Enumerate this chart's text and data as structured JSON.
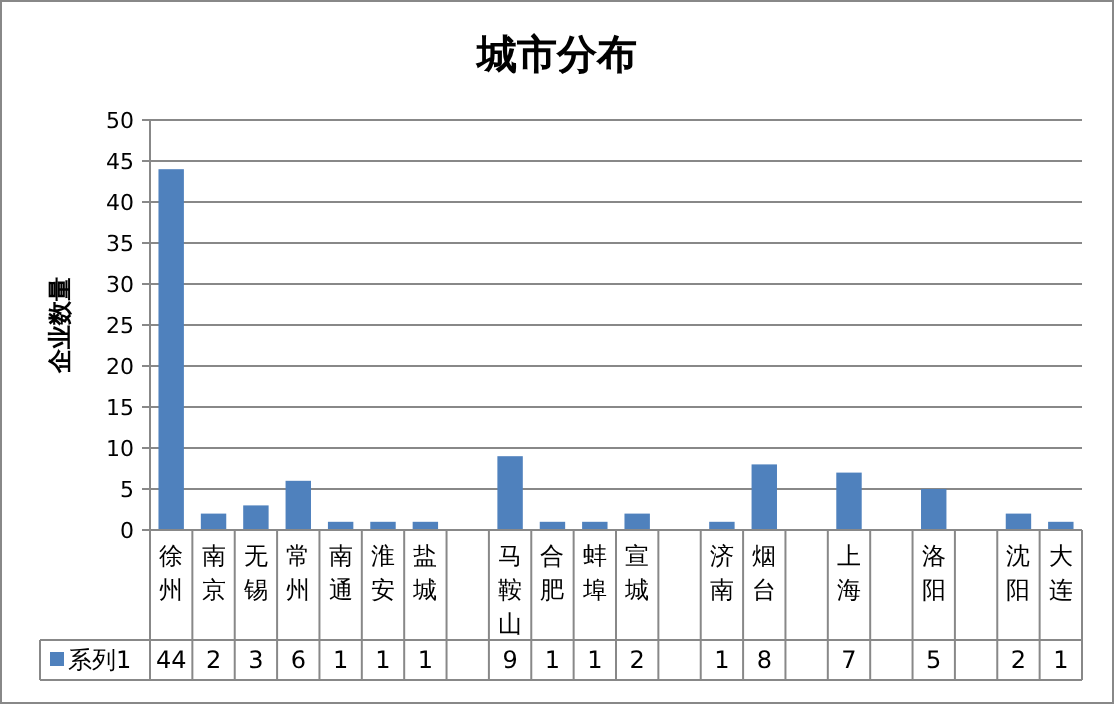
{
  "chart_data": {
    "type": "bar",
    "title": "城市分布",
    "ylabel": "企业数量",
    "categories": [
      "徐州",
      "南京",
      "无锡",
      "常州",
      "南通",
      "淮安",
      "盐城",
      null,
      "马鞍山",
      "合肥",
      "蚌埠",
      "宣城",
      null,
      "济南",
      "烟台",
      null,
      "上海",
      null,
      "洛阳",
      null,
      "沈阳",
      "大连"
    ],
    "series": [
      {
        "name": "系列1",
        "color": "#4f81bd",
        "values": [
          44,
          2,
          3,
          6,
          1,
          1,
          1,
          null,
          9,
          1,
          1,
          2,
          null,
          1,
          8,
          null,
          7,
          null,
          5,
          null,
          2,
          1
        ]
      }
    ],
    "ylim": [
      0,
      50
    ],
    "yticks": [
      0,
      5,
      10,
      15,
      20,
      25,
      30,
      35,
      40,
      45,
      50
    ],
    "grid": "y",
    "legend": "bottom left",
    "data_labels": true
  }
}
